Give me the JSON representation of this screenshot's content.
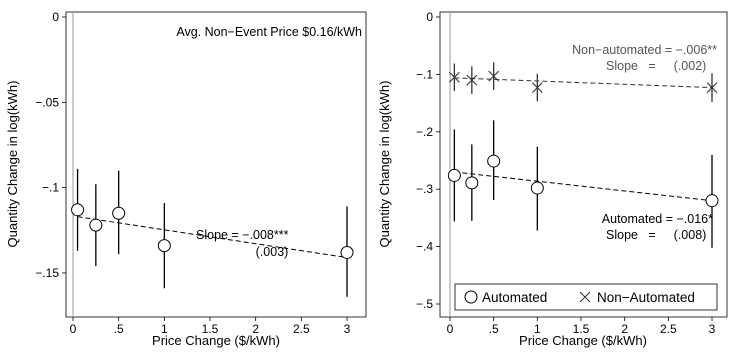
{
  "chart_data": [
    {
      "type": "scatter",
      "xlabel": "Price Change ($/kWh)",
      "ylabel": "Quantity Change in log(kWh)",
      "xlim": [
        0,
        3
      ],
      "ylim": [
        -0.16,
        0
      ],
      "x_ticks": [
        0,
        0.5,
        1,
        1.5,
        2,
        2.5,
        3
      ],
      "x_tick_labels": [
        "0",
        ".5",
        "1",
        "1.5",
        "2",
        "2.5",
        "3"
      ],
      "y_ticks": [
        0,
        -0.05,
        -0.1,
        -0.15
      ],
      "y_tick_labels": [
        "0",
        "-.05",
        "-.1",
        "-.15"
      ],
      "reference_line_x": 0,
      "annotations": {
        "top": "Avg. Non−Event Price $0.16/kWh",
        "slope_label": "Slope = −.008***",
        "slope_se": "(.003)"
      },
      "series": [
        {
          "marker": "circle",
          "x": [
            0.05,
            0.25,
            0.5,
            1,
            3
          ],
          "y": [
            -0.113,
            -0.122,
            -0.115,
            -0.134,
            -0.138
          ],
          "ci_low": [
            -0.137,
            -0.146,
            -0.139,
            -0.159,
            -0.164
          ],
          "ci_high": [
            -0.089,
            -0.098,
            -0.09,
            -0.109,
            -0.111
          ],
          "fit": {
            "x": [
              0.05,
              3
            ],
            "y": [
              -0.117,
              -0.141
            ]
          }
        }
      ]
    },
    {
      "type": "scatter",
      "xlabel": "Price Change ($/kWh)",
      "ylabel": "Quantity Change in log(kWh)",
      "xlim": [
        0,
        3
      ],
      "ylim": [
        -0.5,
        0
      ],
      "x_ticks": [
        0,
        0.5,
        1,
        1.5,
        2,
        2.5,
        3
      ],
      "x_tick_labels": [
        "0",
        ".5",
        "1",
        "1.5",
        "2",
        "2.5",
        "3"
      ],
      "y_ticks": [
        0,
        -0.1,
        -0.2,
        -0.3,
        -0.4,
        -0.5
      ],
      "y_tick_labels": [
        "0",
        "-.1",
        "-.2",
        "-.3",
        "-.4",
        "-.5"
      ],
      "reference_line_x": 0,
      "annotations": {
        "nonauto_label": "Non−automated  =  −.006**",
        "nonauto_slope": "Slope",
        "nonauto_se": "(.002)",
        "auto_label": "Automated  =  −.016*",
        "auto_slope": "Slope",
        "auto_se": "(.008)"
      },
      "legend": {
        "position": "bottom",
        "entries": [
          "Automated",
          "Non−Automated"
        ]
      },
      "series": [
        {
          "name": "Automated",
          "marker": "circle",
          "x": [
            0.05,
            0.25,
            0.5,
            1,
            3
          ],
          "y": [
            -0.276,
            -0.289,
            -0.251,
            -0.298,
            -0.32
          ],
          "ci_low": [
            -0.356,
            -0.355,
            -0.319,
            -0.372,
            -0.402
          ],
          "ci_high": [
            -0.196,
            -0.222,
            -0.18,
            -0.226,
            -0.24
          ],
          "fit": {
            "x": [
              0.05,
              3
            ],
            "y": [
              -0.27,
              -0.32
            ]
          }
        },
        {
          "name": "Non−Automated",
          "marker": "x",
          "x": [
            0.05,
            0.25,
            0.5,
            1,
            3
          ],
          "y": [
            -0.105,
            -0.11,
            -0.103,
            -0.123,
            -0.123
          ],
          "ci_low": [
            -0.129,
            -0.134,
            -0.127,
            -0.147,
            -0.148
          ],
          "ci_high": [
            -0.081,
            -0.086,
            -0.079,
            -0.099,
            -0.098
          ],
          "fit": {
            "x": [
              0.05,
              3
            ],
            "y": [
              -0.106,
              -0.123
            ]
          }
        }
      ]
    }
  ]
}
